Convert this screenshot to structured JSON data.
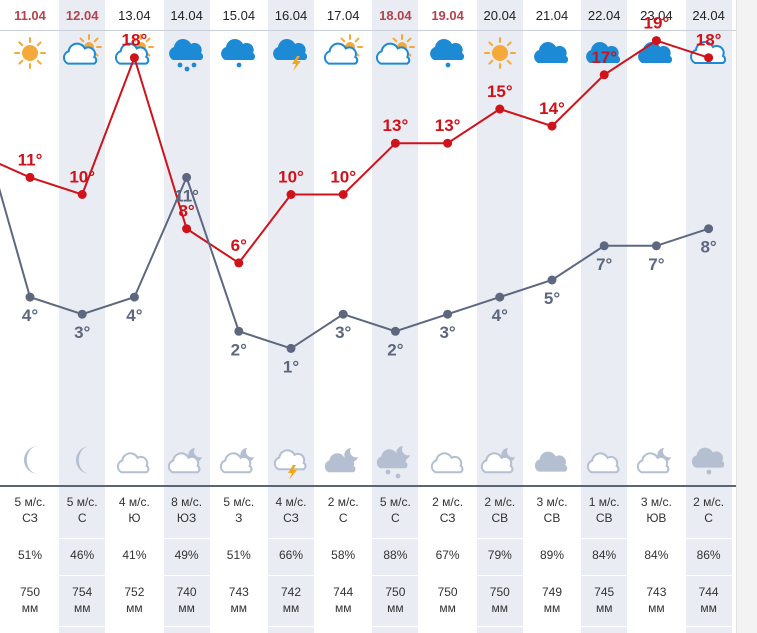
{
  "days": [
    {
      "date": "11.04",
      "weekend": true,
      "shade": false,
      "day_icon": "sun-icon",
      "t_day": 11,
      "t_night": 4,
      "night_icon": "moon-icon",
      "wind_speed": "5 м/с.",
      "wind_dir": "СЗ",
      "humidity": "51%",
      "pressure": "750",
      "pressure_unit": "мм"
    },
    {
      "date": "12.04",
      "weekend": true,
      "shade": true,
      "day_icon": "partly-cloudy-icon",
      "t_day": 10,
      "t_night": 3,
      "night_icon": "moon-icon",
      "wind_speed": "5 м/с.",
      "wind_dir": "С",
      "humidity": "46%",
      "pressure": "754",
      "pressure_unit": "мм"
    },
    {
      "date": "13.04",
      "weekend": false,
      "shade": false,
      "day_icon": "partly-cloudy-icon",
      "t_day": 18,
      "t_night": 4,
      "night_icon": "cloud-outline-icon",
      "wind_speed": "4 м/с.",
      "wind_dir": "Ю",
      "humidity": "41%",
      "pressure": "752",
      "pressure_unit": "мм"
    },
    {
      "date": "14.04",
      "weekend": false,
      "shade": true,
      "day_icon": "cloud-rain-icon",
      "t_day": 8,
      "t_night": 11,
      "night_icon": "cloud-moon-icon",
      "wind_speed": "8 м/с.",
      "wind_dir": "ЮЗ",
      "humidity": "49%",
      "pressure": "740",
      "pressure_unit": "мм"
    },
    {
      "date": "15.04",
      "weekend": false,
      "shade": false,
      "day_icon": "cloud-light-rain-icon",
      "t_day": 6,
      "t_night": 2,
      "night_icon": "cloud-moon-icon",
      "wind_speed": "5 м/с.",
      "wind_dir": "З",
      "humidity": "51%",
      "pressure": "743",
      "pressure_unit": "мм"
    },
    {
      "date": "16.04",
      "weekend": false,
      "shade": true,
      "day_icon": "thunderstorm-icon",
      "t_day": 10,
      "t_night": 1,
      "night_icon": "thunder-cloud-icon",
      "wind_speed": "4 м/с.",
      "wind_dir": "СЗ",
      "humidity": "66%",
      "pressure": "742",
      "pressure_unit": "мм"
    },
    {
      "date": "17.04",
      "weekend": false,
      "shade": false,
      "day_icon": "partly-cloudy-icon",
      "t_day": 10,
      "t_night": 3,
      "night_icon": "overcast-moon-icon",
      "wind_speed": "2 м/с.",
      "wind_dir": "С",
      "humidity": "58%",
      "pressure": "744",
      "pressure_unit": "мм"
    },
    {
      "date": "18.04",
      "weekend": true,
      "shade": true,
      "day_icon": "partly-cloudy-icon",
      "t_day": 13,
      "t_night": 2,
      "night_icon": "rain-moon-icon",
      "wind_speed": "5 м/с.",
      "wind_dir": "С",
      "humidity": "88%",
      "pressure": "750",
      "pressure_unit": "мм"
    },
    {
      "date": "19.04",
      "weekend": true,
      "shade": false,
      "day_icon": "cloud-light-rain-icon",
      "t_day": 13,
      "t_night": 3,
      "night_icon": "cloud-outline-icon",
      "wind_speed": "2 м/с.",
      "wind_dir": "СЗ",
      "humidity": "67%",
      "pressure": "750",
      "pressure_unit": "мм"
    },
    {
      "date": "20.04",
      "weekend": false,
      "shade": true,
      "day_icon": "sun-icon",
      "t_day": 15,
      "t_night": 4,
      "night_icon": "cloud-moon-icon",
      "wind_speed": "2 м/с.",
      "wind_dir": "СВ",
      "humidity": "79%",
      "pressure": "750",
      "pressure_unit": "мм"
    },
    {
      "date": "21.04",
      "weekend": false,
      "shade": false,
      "day_icon": "cloud-icon",
      "t_day": 14,
      "t_night": 5,
      "night_icon": "overcast-icon",
      "wind_speed": "3 м/с.",
      "wind_dir": "СВ",
      "humidity": "89%",
      "pressure": "749",
      "pressure_unit": "мм"
    },
    {
      "date": "22.04",
      "weekend": false,
      "shade": true,
      "day_icon": "cloud-icon",
      "t_day": 17,
      "t_night": 7,
      "night_icon": "cloud-outline-icon",
      "wind_speed": "1 м/с.",
      "wind_dir": "СВ",
      "humidity": "84%",
      "pressure": "745",
      "pressure_unit": "мм"
    },
    {
      "date": "23.04",
      "weekend": false,
      "shade": false,
      "day_icon": "cloud-icon",
      "t_day": 19,
      "t_night": 7,
      "night_icon": "cloud-moon-icon",
      "wind_speed": "3 м/с.",
      "wind_dir": "ЮВ",
      "humidity": "84%",
      "pressure": "743",
      "pressure_unit": "мм"
    },
    {
      "date": "24.04",
      "weekend": false,
      "shade": true,
      "day_icon": "cloud-outline-blue-icon",
      "t_day": 18,
      "t_night": 8,
      "night_icon": "rain-cloud-icon",
      "wind_speed": "2 м/с.",
      "wind_dir": "С",
      "humidity": "86%",
      "pressure": "744",
      "pressure_unit": "мм"
    }
  ],
  "chart_data": {
    "type": "line",
    "x": [
      "11.04",
      "12.04",
      "13.04",
      "14.04",
      "15.04",
      "16.04",
      "17.04",
      "18.04",
      "19.04",
      "20.04",
      "21.04",
      "22.04",
      "23.04",
      "24.04"
    ],
    "series": [
      {
        "values": [
          11,
          10,
          18,
          8,
          6,
          10,
          10,
          13,
          13,
          15,
          14,
          17,
          19,
          18
        ],
        "color": "#d0121b"
      },
      {
        "values": [
          4,
          3,
          4,
          11,
          2,
          1,
          3,
          2,
          3,
          4,
          5,
          7,
          7,
          8
        ],
        "color": "#5d6880"
      }
    ],
    "degree_symbol": "°"
  },
  "colors": {
    "day_line": "#d0121b",
    "night_line": "#5d6880",
    "shade": "#e9ecf2",
    "sun": "#f6a93b",
    "blue_icon": "#1d8ad6",
    "night_icon": "#b4bfd2"
  }
}
